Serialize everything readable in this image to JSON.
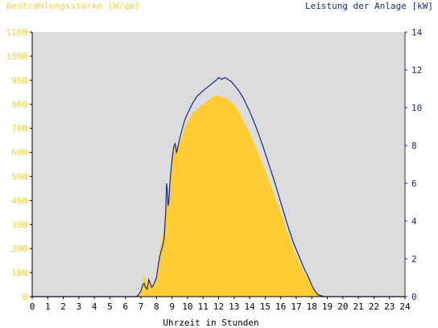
{
  "chart_data": {
    "type": "area",
    "title_left": "Bestrahlungsstärke [W/qm]",
    "title_right": "Leistung der Anlage [kW]",
    "xlabel": "Uhrzeit in Stunden",
    "x_ticks": [
      "0",
      "1",
      "2",
      "3",
      "4",
      "5",
      "6",
      "7",
      "8",
      "9",
      "10",
      "11",
      "12",
      "13",
      "14",
      "15",
      "16",
      "17",
      "18",
      "19",
      "20",
      "21",
      "22",
      "23",
      "24"
    ],
    "xlim": [
      0,
      24
    ],
    "y_left_ticks": [
      "0",
      "100",
      "200",
      "300",
      "400",
      "500",
      "600",
      "700",
      "800",
      "900",
      "1000",
      "1100"
    ],
    "ylim_left": [
      0,
      1100
    ],
    "y_right_ticks": [
      "0",
      "2",
      "4",
      "6",
      "8",
      "10",
      "12",
      "14"
    ],
    "ylim_right": [
      0,
      14
    ],
    "grid": false,
    "colors": {
      "irradiance": "#ffcc33",
      "power": "#1a2a80",
      "plot_bg": "#dcdcdc",
      "left_axis_text": "#ffcc33",
      "right_axis_text": "#1a2a80",
      "axis": "#000000"
    },
    "series": [
      {
        "axis": "left",
        "style": "area",
        "x": [
          0,
          6.7,
          6.85,
          7.0,
          7.1,
          7.2,
          7.3,
          7.4,
          7.5,
          7.6,
          7.7,
          7.8,
          7.9,
          8.0,
          8.1,
          8.2,
          8.3,
          8.4,
          8.5,
          8.6,
          8.65,
          8.7,
          8.75,
          8.8,
          8.85,
          8.9,
          9.0,
          9.1,
          9.2,
          9.3,
          9.5,
          9.8,
          10.0,
          10.3,
          10.6,
          11.0,
          11.3,
          11.6,
          11.9,
          12.0,
          12.2,
          12.4,
          12.6,
          12.8,
          13.0,
          13.3,
          13.6,
          14.0,
          14.4,
          14.8,
          15.2,
          15.6,
          16.0,
          16.4,
          16.8,
          17.2,
          17.5,
          17.8,
          18.0,
          18.2,
          18.4,
          18.6,
          18.8,
          19.0,
          24
        ],
        "y": [
          0,
          0,
          10,
          30,
          60,
          85,
          70,
          45,
          55,
          75,
          50,
          45,
          65,
          90,
          140,
          190,
          230,
          260,
          300,
          360,
          420,
          430,
          400,
          360,
          420,
          470,
          560,
          620,
          640,
          620,
          640,
          700,
          730,
          760,
          780,
          800,
          815,
          830,
          835,
          835,
          830,
          830,
          820,
          810,
          800,
          770,
          730,
          680,
          620,
          560,
          490,
          420,
          350,
          270,
          200,
          140,
          100,
          70,
          45,
          25,
          10,
          5,
          2,
          0,
          0
        ]
      },
      {
        "axis": "right",
        "style": "line",
        "x": [
          0,
          6.7,
          6.85,
          7.0,
          7.1,
          7.2,
          7.3,
          7.4,
          7.5,
          7.6,
          7.7,
          7.8,
          7.9,
          8.0,
          8.1,
          8.2,
          8.3,
          8.4,
          8.5,
          8.6,
          8.65,
          8.7,
          8.75,
          8.8,
          8.85,
          8.9,
          9.0,
          9.1,
          9.2,
          9.3,
          9.5,
          9.8,
          10.0,
          10.3,
          10.6,
          11.0,
          11.3,
          11.6,
          11.9,
          12.0,
          12.2,
          12.4,
          12.6,
          12.8,
          13.0,
          13.3,
          13.6,
          14.0,
          14.4,
          14.8,
          15.2,
          15.6,
          16.0,
          16.4,
          16.8,
          17.2,
          17.5,
          17.8,
          18.0,
          18.2,
          18.4,
          18.6,
          18.8,
          19.0,
          24
        ],
        "y": [
          0,
          0,
          0.1,
          0.3,
          0.6,
          0.7,
          0.5,
          0.4,
          0.9,
          0.7,
          0.5,
          0.6,
          0.8,
          1.0,
          1.6,
          2.1,
          2.4,
          2.7,
          3.1,
          4.6,
          6.0,
          5.6,
          4.8,
          5.1,
          5.8,
          6.4,
          7.2,
          7.9,
          8.1,
          7.6,
          8.4,
          9.3,
          9.7,
          10.2,
          10.6,
          10.9,
          11.1,
          11.3,
          11.5,
          11.6,
          11.5,
          11.6,
          11.5,
          11.4,
          11.2,
          10.9,
          10.5,
          9.8,
          9.0,
          8.1,
          7.1,
          6.1,
          5.0,
          3.9,
          2.9,
          2.1,
          1.5,
          1.0,
          0.6,
          0.3,
          0.1,
          0.05,
          0,
          0,
          0
        ]
      }
    ]
  }
}
